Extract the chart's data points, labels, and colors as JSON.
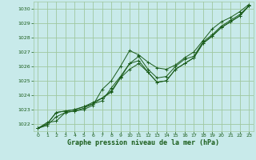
{
  "bg_color": "#c8eaea",
  "grid_color": "#a0c8a0",
  "line_color": "#1a5c1a",
  "marker_color": "#1a5c1a",
  "xlabel": "Graphe pression niveau de la mer (hPa)",
  "xlabel_color": "#1a5c1a",
  "ylim": [
    1021.5,
    1030.5
  ],
  "xlim": [
    -0.5,
    23.5
  ],
  "yticks": [
    1022,
    1023,
    1024,
    1025,
    1026,
    1027,
    1028,
    1029,
    1030
  ],
  "xticks": [
    0,
    1,
    2,
    3,
    4,
    5,
    6,
    7,
    8,
    9,
    10,
    11,
    12,
    13,
    14,
    15,
    16,
    17,
    18,
    19,
    20,
    21,
    22,
    23
  ],
  "lines": [
    [
      1021.7,
      1022.1,
      1022.2,
      1022.8,
      1022.9,
      1023.0,
      1023.3,
      1024.4,
      1025.0,
      1026.0,
      1027.1,
      1026.8,
      1026.3,
      1025.9,
      1025.8,
      1026.1,
      1026.6,
      1027.0,
      1027.8,
      1028.6,
      1029.1,
      1029.4,
      1029.8,
      1030.3
    ],
    [
      1021.7,
      1022.0,
      1022.8,
      1022.9,
      1023.0,
      1023.2,
      1023.4,
      1023.8,
      1024.3,
      1025.2,
      1026.2,
      1026.4,
      1025.6,
      1024.9,
      1025.0,
      1025.8,
      1026.2,
      1026.6,
      1027.6,
      1028.1,
      1028.7,
      1029.1,
      1029.5,
      1030.2
    ],
    [
      1021.7,
      1022.0,
      1022.8,
      1022.9,
      1023.0,
      1023.2,
      1023.5,
      1023.8,
      1024.2,
      1025.2,
      1025.8,
      1026.2,
      1025.6,
      1024.9,
      1025.0,
      1025.8,
      1026.2,
      1026.6,
      1027.6,
      1028.1,
      1028.7,
      1029.1,
      1029.5,
      1030.2
    ],
    [
      1021.7,
      1021.9,
      1022.5,
      1022.8,
      1022.9,
      1023.1,
      1023.4,
      1023.6,
      1024.5,
      1025.3,
      1026.2,
      1026.7,
      1025.8,
      1025.2,
      1025.3,
      1026.0,
      1026.5,
      1026.7,
      1027.7,
      1028.2,
      1028.8,
      1029.2,
      1029.6,
      1030.2
    ]
  ]
}
